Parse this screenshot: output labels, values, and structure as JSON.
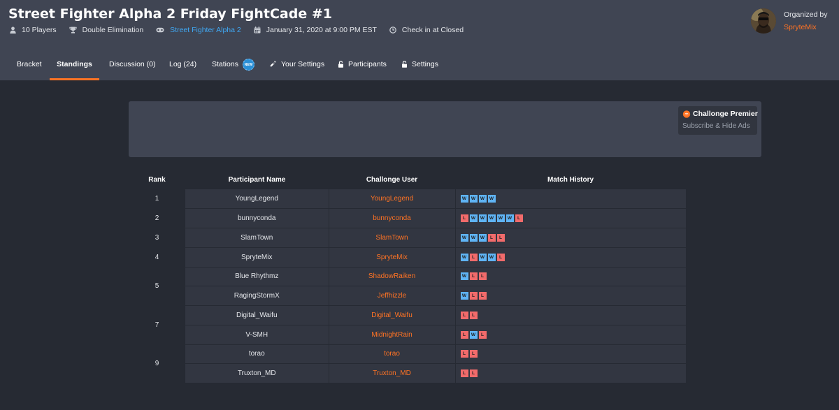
{
  "tournament": {
    "title": "Street Fighter Alpha 2 Friday FightCade #1",
    "players": "10 Players",
    "format": "Double Elimination",
    "game": "Street Fighter Alpha 2",
    "date": "January 31, 2020 at 9:00 PM EST",
    "checkin": "Check in at Closed"
  },
  "organizer": {
    "label": "Organized by",
    "name": "SpryteMix"
  },
  "tabs": [
    {
      "label": "Bracket"
    },
    {
      "label": "Standings"
    },
    {
      "label": "Discussion (0)"
    },
    {
      "label": "Log (24)"
    },
    {
      "label": "Stations",
      "badge": "NEW"
    },
    {
      "label": "Your Settings"
    },
    {
      "label": "Participants"
    },
    {
      "label": "Settings"
    }
  ],
  "active_tab": "Standings",
  "ad": {
    "title": "Challonge Premier",
    "subtitle": "Subscribe & Hide Ads"
  },
  "table": {
    "headers": {
      "rank": "Rank",
      "participant": "Participant Name",
      "user": "Challonge User",
      "history": "Match History"
    },
    "rows": [
      {
        "rank": "1",
        "name": "YoungLegend",
        "user": "YoungLegend",
        "history": [
          "W",
          "W",
          "W",
          "W"
        ]
      },
      {
        "rank": "2",
        "name": "bunnyconda",
        "user": "bunnyconda",
        "history": [
          "L",
          "W",
          "W",
          "W",
          "W",
          "W",
          "L"
        ]
      },
      {
        "rank": "3",
        "name": "SlamTown",
        "user": "SlamTown",
        "history": [
          "W",
          "W",
          "W",
          "L",
          "L"
        ]
      },
      {
        "rank": "4",
        "name": "SpryteMix",
        "user": "SpryteMix",
        "history": [
          "W",
          "L",
          "W",
          "W",
          "L"
        ]
      },
      {
        "rank": "5",
        "name": "Blue Rhythmz",
        "user": "ShadowRaiken",
        "history": [
          "W",
          "L",
          "L"
        ]
      },
      {
        "rank": "",
        "name": "RagingStormX",
        "user": "Jeffhizzle",
        "history": [
          "W",
          "L",
          "L"
        ]
      },
      {
        "rank": "7",
        "name": "Digital_Waifu",
        "user": "Digital_Waifu",
        "history": [
          "L",
          "L"
        ]
      },
      {
        "rank": "",
        "name": "V-SMH",
        "user": "MidnightRain",
        "history": [
          "L",
          "W",
          "L"
        ]
      },
      {
        "rank": "9",
        "name": "torao",
        "user": "torao",
        "history": [
          "L",
          "L"
        ]
      },
      {
        "rank": "",
        "name": "Truxton_MD",
        "user": "Truxton_MD",
        "history": [
          "L",
          "L"
        ]
      }
    ]
  },
  "colors": {
    "accent": "#ff7324",
    "link": "#3fa9f5",
    "win": "#5fb4f5",
    "loss": "#f26b6b"
  }
}
